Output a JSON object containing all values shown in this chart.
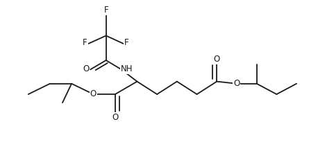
{
  "background": "#ffffff",
  "line_color": "#1a1a1a",
  "text_color": "#1a1a1a",
  "font_size": 8.5,
  "line_width": 1.3,
  "figsize": [
    4.58,
    2.18
  ],
  "dpi": 100,
  "xlim": [
    0.02,
    1.13
  ],
  "ylim": [
    0.05,
    1.02
  ]
}
